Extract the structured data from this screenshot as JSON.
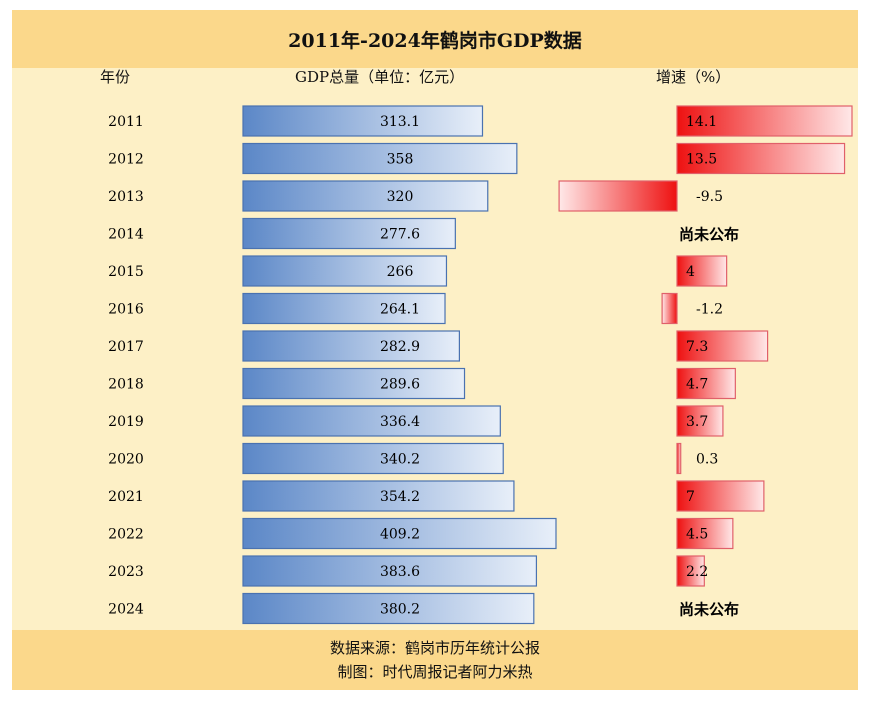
{
  "header": {
    "title": "2011年-2024年鹤岗市GDP数据",
    "col_year": "年份",
    "col_gdp": "GDP总量（单位：亿元）",
    "col_growth": "增速（%）"
  },
  "footer": {
    "source": "数据来源：鹤岗市历年统计公报",
    "credit": "制图：时代周报记者阿力米热"
  },
  "colors": {
    "title_band": "#fbd88b",
    "panel": "#fdf0c6",
    "gdp_bar_dark": "#5b87c7",
    "gdp_bar_light": "#e8eff9",
    "growth_bar_red": "#ee1111",
    "growth_bar_light": "#ffe8e8"
  },
  "chart_data": {
    "type": "bar",
    "categories": [
      "2011",
      "2012",
      "2013",
      "2014",
      "2015",
      "2016",
      "2017",
      "2018",
      "2019",
      "2020",
      "2021",
      "2022",
      "2023",
      "2024"
    ],
    "series": [
      {
        "values": [
          313.1,
          358,
          320,
          277.6,
          266,
          264.1,
          282.9,
          289.6,
          336.4,
          340.2,
          354.2,
          409.2,
          383.6,
          380.2
        ]
      },
      {
        "values": [
          14.1,
          13.5,
          -9.5,
          null,
          4,
          -1.2,
          7.3,
          4.7,
          3.7,
          0.3,
          7,
          4.5,
          2.2,
          null
        ]
      }
    ],
    "gdp_labels": [
      "313.1",
      "358",
      "320",
      "277.6",
      "266",
      "264.1",
      "282.9",
      "289.6",
      "336.4",
      "340.2",
      "354.2",
      "409.2",
      "383.6",
      "380.2"
    ],
    "growth_labels": [
      "14.1",
      "13.5",
      "-9.5",
      "尚未公布",
      "4",
      "-1.2",
      "7.3",
      "4.7",
      "3.7",
      "0.3",
      "7",
      "4.5",
      "2.2",
      "尚未公布"
    ],
    "not_published_label": "尚未公布"
  }
}
